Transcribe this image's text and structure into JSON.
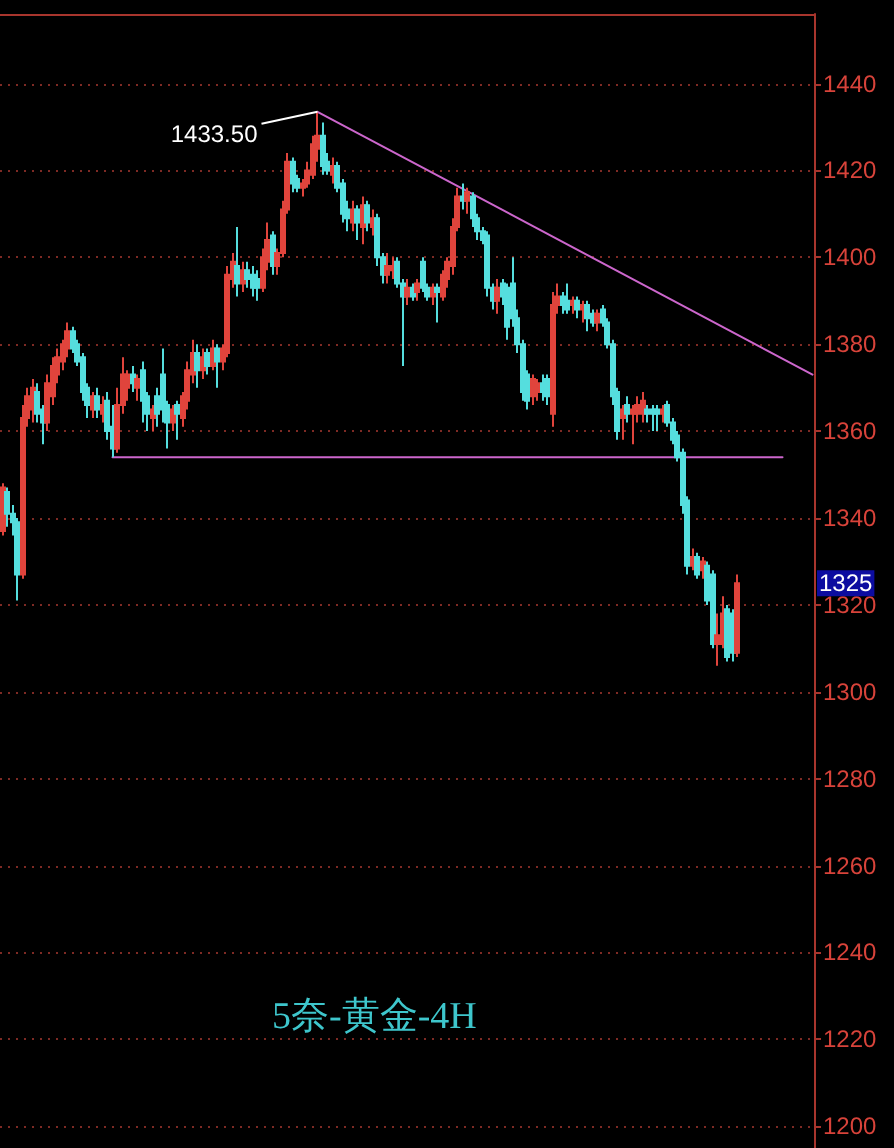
{
  "chart_data": {
    "type": "candlestick",
    "title": "5奈-黄金-4H",
    "categories": [
      null,
      null,
      null,
      null,
      null,
      null,
      null,
      null,
      null,
      null,
      null,
      null,
      null,
      null,
      null,
      null,
      null,
      null,
      null,
      null,
      null,
      null,
      null,
      null,
      null,
      null,
      null,
      null,
      null,
      null,
      null,
      null,
      null,
      null,
      null,
      null,
      null,
      null,
      null,
      null,
      null,
      null,
      null,
      null,
      null,
      null,
      null,
      null,
      null,
      null,
      null,
      null,
      null,
      null,
      null,
      null,
      null,
      null,
      null,
      null,
      null,
      null,
      null,
      null,
      null,
      null,
      null,
      null,
      null,
      null,
      null,
      null,
      null,
      null,
      null,
      null,
      null,
      null,
      null,
      null,
      null,
      null,
      null,
      null,
      null,
      null,
      null,
      null,
      null,
      null,
      null,
      null,
      null,
      null,
      null,
      null,
      null,
      null,
      null,
      null,
      null,
      null,
      null,
      null,
      null,
      null,
      null,
      null,
      null,
      null,
      null,
      null,
      null,
      null,
      null,
      null,
      null,
      null,
      null,
      null,
      null,
      null,
      null,
      null,
      null,
      null,
      null,
      null,
      null,
      null,
      null,
      null,
      null,
      null,
      null,
      null,
      null,
      null,
      null,
      null,
      null,
      null,
      null,
      null,
      null,
      null,
      null,
      null,
      null,
      null,
      null,
      null,
      null,
      null,
      null,
      null,
      null,
      null,
      null,
      null,
      null,
      null,
      null
    ],
    "ohlc": [
      [
        1337,
        1348,
        1336,
        1347
      ],
      [
        1346,
        1347,
        1338,
        1341
      ],
      [
        1341,
        1343,
        1336,
        1339
      ],
      [
        1339,
        1340,
        1321,
        1327
      ],
      [
        1327,
        1366,
        1326,
        1363
      ],
      [
        1363,
        1370,
        1361,
        1368
      ],
      [
        1365,
        1372,
        1362,
        1370
      ],
      [
        1369,
        1371,
        1362,
        1364
      ],
      [
        1365,
        1366,
        1357,
        1362
      ],
      [
        1362,
        1373,
        1360,
        1371
      ],
      [
        1368,
        1377,
        1366,
        1375
      ],
      [
        1373,
        1379,
        1371,
        1377
      ],
      [
        1376,
        1381,
        1374,
        1380
      ],
      [
        1379,
        1385,
        1377,
        1383
      ],
      [
        1383,
        1384,
        1378,
        1379
      ],
      [
        1380,
        1381,
        1375,
        1376
      ],
      [
        1377,
        1378,
        1367,
        1369
      ],
      [
        1370,
        1371,
        1363,
        1366
      ],
      [
        1365,
        1369,
        1363,
        1368
      ],
      [
        1368,
        1370,
        1363,
        1365
      ],
      [
        1364,
        1368,
        1362,
        1366
      ],
      [
        1367,
        1369,
        1358,
        1360
      ],
      [
        1361,
        1366,
        1354,
        1356
      ],
      [
        1356,
        1370,
        1355,
        1366
      ],
      [
        1366,
        1377,
        1364,
        1373
      ],
      [
        1370,
        1374,
        1367,
        1373
      ],
      [
        1373,
        1375,
        1369,
        1371
      ],
      [
        1370,
        1373,
        1367,
        1372
      ],
      [
        1374,
        1376,
        1362,
        1367
      ],
      [
        1368,
        1369,
        1360,
        1364
      ],
      [
        1363,
        1366,
        1360,
        1365
      ],
      [
        1368,
        1370,
        1361,
        1364
      ],
      [
        1373,
        1379,
        1362,
        1365
      ],
      [
        1366,
        1367,
        1356,
        1362
      ],
      [
        1362,
        1366,
        1360,
        1365
      ],
      [
        1366,
        1367,
        1358,
        1364
      ],
      [
        1363,
        1369,
        1361,
        1368
      ],
      [
        1367,
        1376,
        1365,
        1374
      ],
      [
        1373,
        1381,
        1371,
        1378
      ],
      [
        1378,
        1380,
        1370,
        1374
      ],
      [
        1374,
        1379,
        1372,
        1377
      ],
      [
        1378,
        1379,
        1373,
        1375
      ],
      [
        1375,
        1381,
        1374,
        1379
      ],
      [
        1379,
        1380,
        1370,
        1376
      ],
      [
        1376,
        1380,
        1374,
        1379
      ],
      [
        1378,
        1398,
        1377,
        1396
      ],
      [
        1395,
        1401,
        1393,
        1399
      ],
      [
        1398,
        1407,
        1391,
        1394
      ],
      [
        1394,
        1399,
        1392,
        1397
      ],
      [
        1397,
        1399,
        1393,
        1395
      ],
      [
        1396,
        1398,
        1391,
        1393
      ],
      [
        1395,
        1397,
        1390,
        1393
      ],
      [
        1393,
        1402,
        1392,
        1400
      ],
      [
        1399,
        1408,
        1397,
        1404
      ],
      [
        1405,
        1406,
        1396,
        1398
      ],
      [
        1398,
        1402,
        1396,
        1401
      ],
      [
        1401,
        1413,
        1400,
        1411
      ],
      [
        1411,
        1424,
        1410,
        1422
      ],
      [
        1422,
        1423,
        1415,
        1417
      ],
      [
        1418,
        1419,
        1415,
        1416
      ],
      [
        1416,
        1418,
        1414,
        1417
      ],
      [
        1417,
        1422,
        1416,
        1420
      ],
      [
        1419,
        1428,
        1418,
        1426
      ],
      [
        1425,
        1433.5,
        1422,
        1428
      ],
      [
        1428,
        1431,
        1419,
        1421
      ],
      [
        1422,
        1424,
        1419,
        1420
      ],
      [
        1419,
        1423,
        1417,
        1421
      ],
      [
        1421,
        1422,
        1415,
        1416
      ],
      [
        1417,
        1418,
        1408,
        1410
      ],
      [
        1411,
        1413,
        1406,
        1409
      ],
      [
        1408,
        1413,
        1406,
        1411
      ],
      [
        1411,
        1412,
        1404,
        1408
      ],
      [
        1407,
        1414,
        1403,
        1412
      ],
      [
        1412,
        1413,
        1406,
        1408
      ],
      [
        1407,
        1411,
        1405,
        1409
      ],
      [
        1409,
        1410,
        1398,
        1400
      ],
      [
        1400,
        1401,
        1394,
        1396
      ],
      [
        1396,
        1401,
        1394,
        1398
      ],
      [
        1397,
        1400,
        1395,
        1398
      ],
      [
        1399,
        1400,
        1393,
        1394
      ],
      [
        1394,
        1395,
        1375,
        1391
      ],
      [
        1391,
        1395,
        1389,
        1393
      ],
      [
        1393,
        1394,
        1390,
        1391
      ],
      [
        1392,
        1395,
        1390,
        1394
      ],
      [
        1399,
        1400,
        1392,
        1393
      ],
      [
        1393,
        1394,
        1390,
        1391
      ],
      [
        1391,
        1394,
        1389,
        1393
      ],
      [
        1393,
        1394,
        1385,
        1392
      ],
      [
        1391,
        1397,
        1390,
        1396
      ],
      [
        1395,
        1400,
        1393,
        1399
      ],
      [
        1398,
        1409,
        1396,
        1407
      ],
      [
        1407,
        1416,
        1406,
        1414
      ],
      [
        1414,
        1417,
        1411,
        1413
      ],
      [
        1413,
        1416,
        1410,
        1415
      ],
      [
        1414,
        1415,
        1407,
        1409
      ],
      [
        1409,
        1410,
        1404,
        1406
      ],
      [
        1406,
        1407,
        1403,
        1404
      ],
      [
        1405,
        1406,
        1391,
        1393
      ],
      [
        1393,
        1394,
        1388,
        1390
      ],
      [
        1390,
        1395,
        1387,
        1393
      ],
      [
        1394,
        1395,
        1389,
        1391
      ],
      [
        1393,
        1394,
        1381,
        1384
      ],
      [
        1394,
        1400,
        1384,
        1386
      ],
      [
        1386,
        1388,
        1378,
        1380
      ],
      [
        1380,
        1381,
        1367,
        1369
      ],
      [
        1373,
        1374,
        1365,
        1367
      ],
      [
        1368,
        1373,
        1366,
        1372
      ],
      [
        1369,
        1372,
        1367,
        1371
      ],
      [
        1371,
        1373,
        1367,
        1369
      ],
      [
        1372,
        1373,
        1366,
        1368
      ],
      [
        1364,
        1392,
        1361,
        1389
      ],
      [
        1389,
        1394,
        1387,
        1391
      ],
      [
        1391,
        1392,
        1387,
        1389
      ],
      [
        1390,
        1394,
        1387,
        1388
      ],
      [
        1389,
        1391,
        1387,
        1390
      ],
      [
        1390,
        1391,
        1386,
        1388
      ],
      [
        1388,
        1390,
        1385,
        1389
      ],
      [
        1389,
        1390,
        1383,
        1386
      ],
      [
        1387,
        1388,
        1384,
        1385
      ],
      [
        1385,
        1388,
        1383,
        1387
      ],
      [
        1388,
        1389,
        1384,
        1385
      ],
      [
        1385,
        1386,
        1379,
        1380
      ],
      [
        1380,
        1381,
        1366,
        1368
      ],
      [
        1369,
        1370,
        1358,
        1360
      ],
      [
        1363,
        1366,
        1358,
        1365
      ],
      [
        1366,
        1368,
        1362,
        1364
      ],
      [
        1364,
        1366,
        1357,
        1365
      ],
      [
        1364,
        1368,
        1362,
        1366
      ],
      [
        1364,
        1369,
        1362,
        1367
      ],
      [
        1365,
        1366,
        1362,
        1364
      ],
      [
        1365,
        1366,
        1360,
        1364
      ],
      [
        1365,
        1366,
        1360,
        1364
      ],
      [
        1364,
        1366,
        1362,
        1365
      ],
      [
        1366,
        1367,
        1361,
        1362
      ],
      [
        1362,
        1363,
        1357,
        1358
      ],
      [
        1359,
        1360,
        1353,
        1354
      ],
      [
        1355,
        1356,
        1341,
        1343
      ],
      [
        1344,
        1345,
        1327,
        1329
      ],
      [
        1329,
        1333,
        1328,
        1331
      ],
      [
        1331,
        1332,
        1326,
        1327
      ],
      [
        1328,
        1331,
        1326,
        1330
      ],
      [
        1329,
        1330,
        1320,
        1321
      ],
      [
        1327,
        1328,
        1310,
        1311
      ],
      [
        1311,
        1318,
        1306,
        1313
      ],
      [
        1311,
        1322,
        1310,
        1318
      ],
      [
        1319,
        1320,
        1307,
        1308
      ],
      [
        1318,
        1319,
        1307,
        1309
      ],
      [
        1309,
        1327,
        1308,
        1325
      ],
      null,
      null,
      null,
      null,
      null,
      null,
      null,
      null,
      null,
      null,
      null,
      null,
      null,
      null,
      null
    ],
    "colors": [
      "#e0443c",
      "#55dede",
      "#55dede",
      "#55dede",
      "#e0443c",
      "#e0443c",
      "#e0443c",
      "#55dede",
      "#55dede",
      "#e0443c",
      "#e0443c",
      "#e0443c",
      "#e0443c",
      "#e0443c",
      "#55dede",
      "#55dede",
      "#55dede",
      "#55dede",
      "#e0443c",
      "#55dede",
      "#e0443c",
      "#55dede",
      "#55dede",
      "#e0443c",
      "#e0443c",
      "#e0443c",
      "#55dede",
      "#e0443c",
      "#55dede",
      "#55dede",
      "#e0443c",
      "#55dede",
      "#55dede",
      "#55dede",
      "#e0443c",
      "#55dede",
      "#e0443c",
      "#e0443c",
      "#e0443c",
      "#55dede",
      "#e0443c",
      "#55dede",
      "#e0443c",
      "#55dede",
      "#e0443c",
      "#e0443c",
      "#e0443c",
      "#55dede",
      "#e0443c",
      "#55dede",
      "#55dede",
      "#55dede",
      "#e0443c",
      "#e0443c",
      "#55dede",
      "#e0443c",
      "#e0443c",
      "#e0443c",
      "#55dede",
      "#55dede",
      "#e0443c",
      "#e0443c",
      "#e0443c",
      "#e0443c",
      "#55dede",
      "#55dede",
      "#e0443c",
      "#55dede",
      "#55dede",
      "#55dede",
      "#e0443c",
      "#55dede",
      "#e0443c",
      "#55dede",
      "#e0443c",
      "#55dede",
      "#55dede",
      "#e0443c",
      "#e0443c",
      "#55dede",
      "#55dede",
      "#e0443c",
      "#55dede",
      "#e0443c",
      "#55dede",
      "#55dede",
      "#e0443c",
      "#55dede",
      "#e0443c",
      "#e0443c",
      "#e0443c",
      "#e0443c",
      "#55dede",
      "#e0443c",
      "#55dede",
      "#55dede",
      "#55dede",
      "#55dede",
      "#55dede",
      "#e0443c",
      "#55dede",
      "#55dede",
      "#55dede",
      "#55dede",
      "#55dede",
      "#55dede",
      "#e0443c",
      "#e0443c",
      "#55dede",
      "#55dede",
      "#e0443c",
      "#e0443c",
      "#55dede",
      "#55dede",
      "#e0443c",
      "#55dede",
      "#e0443c",
      "#55dede",
      "#55dede",
      "#e0443c",
      "#55dede",
      "#55dede",
      "#55dede",
      "#55dede",
      "#e0443c",
      "#55dede",
      "#e0443c",
      "#e0443c",
      "#e0443c",
      "#55dede",
      "#55dede",
      "#55dede",
      "#e0443c",
      "#55dede",
      "#55dede",
      "#55dede",
      "#55dede",
      "#55dede",
      "#e0443c",
      "#55dede",
      "#e0443c",
      "#55dede",
      "#55dede",
      "#e0443c",
      "#e0443c",
      "#55dede",
      "#55dede",
      "#e0443c",
      null,
      null,
      null,
      null,
      null,
      null,
      null,
      null,
      null,
      null,
      null,
      null,
      null,
      null,
      null
    ],
    "series": [
      {
        "type": "line",
        "color": "#cc66cc",
        "values": [
          null,
          null,
          null,
          null,
          null,
          null,
          null,
          null,
          null,
          null,
          null,
          null,
          null,
          null,
          null,
          null,
          null,
          null,
          null,
          null,
          null,
          null,
          null,
          null,
          null,
          null,
          null,
          null,
          null,
          null,
          null,
          null,
          null,
          null,
          null,
          null,
          null,
          null,
          null,
          null,
          null,
          null,
          null,
          null,
          null,
          null,
          null,
          null,
          null,
          null,
          null,
          null,
          null,
          null,
          null,
          null,
          null,
          null,
          null,
          null,
          null,
          null,
          null,
          1433.5,
          null,
          null,
          null,
          null,
          null,
          null,
          null,
          null,
          null,
          null,
          null,
          null,
          null,
          null,
          null,
          null,
          null,
          null,
          null,
          null,
          null,
          null,
          null,
          null,
          null,
          null,
          null,
          null,
          null,
          null,
          null,
          null,
          null,
          null,
          null,
          null,
          null,
          null,
          null,
          null,
          null,
          null,
          null,
          null,
          null,
          null,
          null,
          null,
          null,
          null,
          null,
          null,
          null,
          null,
          null,
          null,
          null,
          null,
          null,
          null,
          null,
          null,
          null,
          null,
          null,
          null,
          null,
          null,
          null,
          null,
          null,
          null,
          null,
          null,
          null,
          null,
          null,
          null,
          null,
          null,
          null,
          null,
          null,
          null,
          null,
          null,
          null,
          null,
          null,
          null,
          null,
          null,
          null,
          null,
          null,
          null,
          null,
          null,
          1373
        ]
      },
      {
        "type": "line",
        "color": "#cc66cc",
        "values": [
          null,
          null,
          null,
          null,
          null,
          null,
          null,
          null,
          null,
          null,
          null,
          null,
          null,
          null,
          null,
          null,
          null,
          null,
          null,
          null,
          null,
          null,
          1354,
          null,
          null,
          null,
          null,
          null,
          null,
          null,
          null,
          null,
          null,
          null,
          null,
          null,
          null,
          null,
          null,
          null,
          null,
          null,
          null,
          null,
          null,
          null,
          null,
          null,
          null,
          null,
          null,
          null,
          null,
          null,
          null,
          null,
          null,
          null,
          null,
          null,
          null,
          null,
          null,
          null,
          null,
          null,
          null,
          null,
          null,
          null,
          null,
          null,
          null,
          null,
          null,
          null,
          null,
          null,
          null,
          null,
          null,
          null,
          null,
          null,
          null,
          null,
          null,
          null,
          null,
          null,
          null,
          null,
          null,
          null,
          null,
          null,
          null,
          null,
          null,
          null,
          null,
          null,
          null,
          null,
          null,
          null,
          null,
          null,
          null,
          null,
          null,
          null,
          null,
          null,
          null,
          null,
          null,
          null,
          null,
          null,
          null,
          null,
          null,
          null,
          null,
          null,
          null,
          null,
          null,
          null,
          null,
          null,
          null,
          null,
          null,
          null,
          null,
          null,
          null,
          null,
          null,
          null,
          null,
          null,
          null,
          null,
          null,
          null,
          null,
          null,
          null,
          null,
          null,
          null,
          null,
          null,
          1354,
          null,
          null,
          null,
          null,
          null,
          null
        ]
      }
    ],
    "ylim": [
      1195,
      1456
    ],
    "yticks": [
      1200,
      1220,
      1240,
      1260,
      1280,
      1300,
      1320,
      1340,
      1360,
      1380,
      1400,
      1420,
      1440
    ],
    "grid": "y",
    "tick_labels": "y",
    "marker": "none",
    "annotations": [
      "1433.50",
      {
        "text": "1325",
        "y": 1325
      }
    ]
  }
}
